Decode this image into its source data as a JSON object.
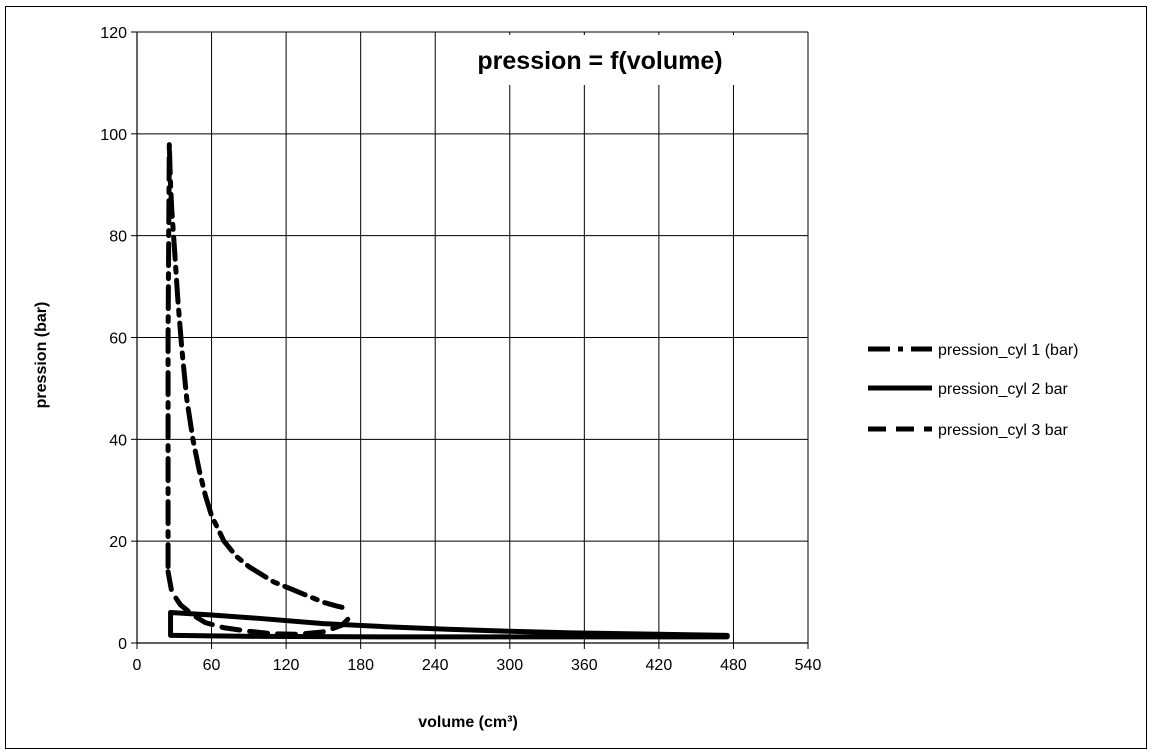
{
  "chart_data": {
    "type": "line",
    "title": "pression = f(volume)",
    "xlabel": "volume (cm³)",
    "ylabel": "pression (bar)",
    "xlim": [
      0,
      540
    ],
    "ylim": [
      0,
      120
    ],
    "xticks": [
      0,
      60,
      120,
      180,
      240,
      300,
      360,
      420,
      480,
      540
    ],
    "yticks": [
      0,
      20,
      40,
      60,
      80,
      100,
      120
    ],
    "grid": true,
    "legend_position": "right",
    "series": [
      {
        "name": "pression_cyl 1 (bar)",
        "style": "dash-dot",
        "x": [
          25,
          25,
          26,
          27,
          28,
          30,
          33,
          36,
          40,
          45,
          50,
          55,
          60,
          70,
          80,
          90,
          100,
          110,
          120,
          130,
          140,
          150,
          160,
          165
        ],
        "y": [
          15,
          60,
          98,
          90,
          85,
          78,
          67,
          58,
          48,
          40,
          34,
          29,
          25,
          20,
          17,
          15,
          13.5,
          12,
          11,
          10,
          9,
          8,
          7.3,
          7
        ]
      },
      {
        "name": "pression_cyl 2 bar",
        "style": "solid",
        "x": [
          27,
          27,
          60,
          100,
          150,
          200,
          250,
          300,
          350,
          400,
          450,
          475,
          475,
          400,
          300,
          200,
          100,
          60,
          30,
          27
        ],
        "y": [
          1.5,
          6,
          5.5,
          4.8,
          3.8,
          3.2,
          2.7,
          2.3,
          2.0,
          1.8,
          1.6,
          1.5,
          1.2,
          1.2,
          1.2,
          1.2,
          1.3,
          1.4,
          1.5,
          1.5
        ]
      },
      {
        "name": "pression_cyl 3 bar",
        "style": "dashed",
        "x": [
          25,
          28,
          35,
          45,
          55,
          70,
          90,
          110,
          130,
          150,
          165,
          175
        ],
        "y": [
          14,
          10,
          7.5,
          5.5,
          4,
          3,
          2.3,
          1.8,
          1.7,
          2.2,
          3.5,
          6
        ]
      }
    ]
  }
}
